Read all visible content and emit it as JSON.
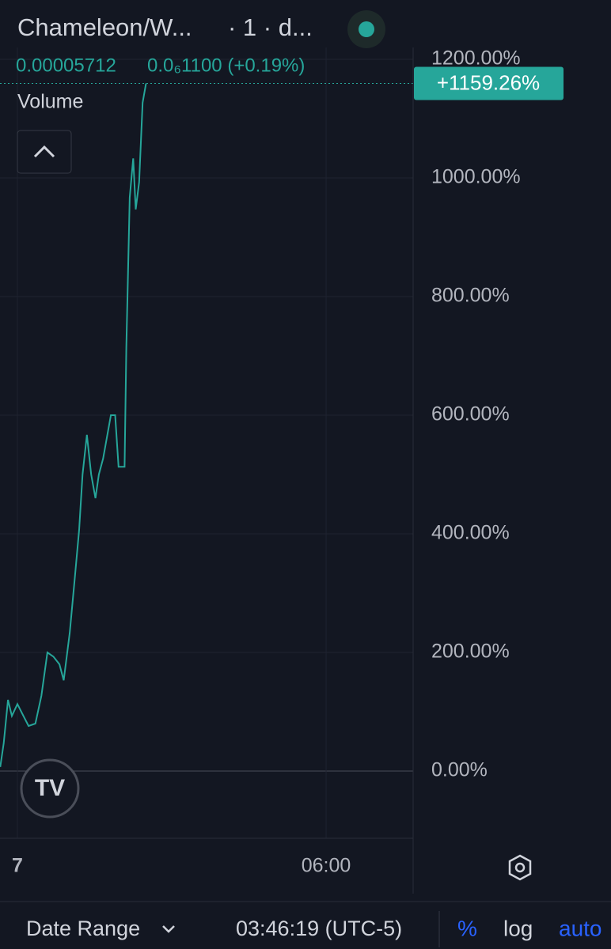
{
  "header": {
    "symbol": "Chameleon/W...",
    "interval": "· 1 · d...",
    "price": "0.00005712",
    "change": "0.0₆1100 (+0.19%)",
    "study": "Volume"
  },
  "chart_data": {
    "type": "line",
    "color": "#26a69a",
    "x": [
      -20,
      -16,
      -11,
      -6.5,
      0,
      7,
      13,
      21,
      28,
      35,
      42,
      49,
      54,
      61,
      67,
      72,
      76,
      81,
      86,
      91,
      95,
      100,
      109,
      114,
      118,
      125,
      127,
      131,
      135,
      138,
      142,
      146,
      150
    ],
    "values": [
      7,
      47,
      120,
      93,
      113,
      93,
      76,
      80,
      127,
      200,
      193,
      180,
      153,
      233,
      327,
      407,
      500,
      567,
      500,
      460,
      500,
      527,
      600,
      600,
      513,
      513,
      713,
      967,
      1033,
      947,
      993,
      1127,
      1159.26
    ],
    "last_label": "+1159.26%",
    "xlim": [
      -20.3,
      461.5
    ],
    "xticks": [
      {
        "value": 0,
        "label": "7"
      },
      {
        "value": 360,
        "label": "06:00"
      }
    ],
    "ylim": [
      -113.3,
      1220
    ],
    "yticks": [
      {
        "value": 0,
        "label": "0.00%"
      },
      {
        "value": 200,
        "label": "200.00%"
      },
      {
        "value": 400,
        "label": "400.00%"
      },
      {
        "value": 600,
        "label": "600.00%"
      },
      {
        "value": 800,
        "label": "800.00%"
      },
      {
        "value": 1000,
        "label": "1000.00%"
      },
      {
        "value": 1200,
        "label": "1200.00%"
      }
    ],
    "grid": true
  },
  "footer": {
    "range": "Date Range",
    "time": "03:46:19 (UTC-5)",
    "percent": "%",
    "log": "log",
    "auto": "auto"
  }
}
